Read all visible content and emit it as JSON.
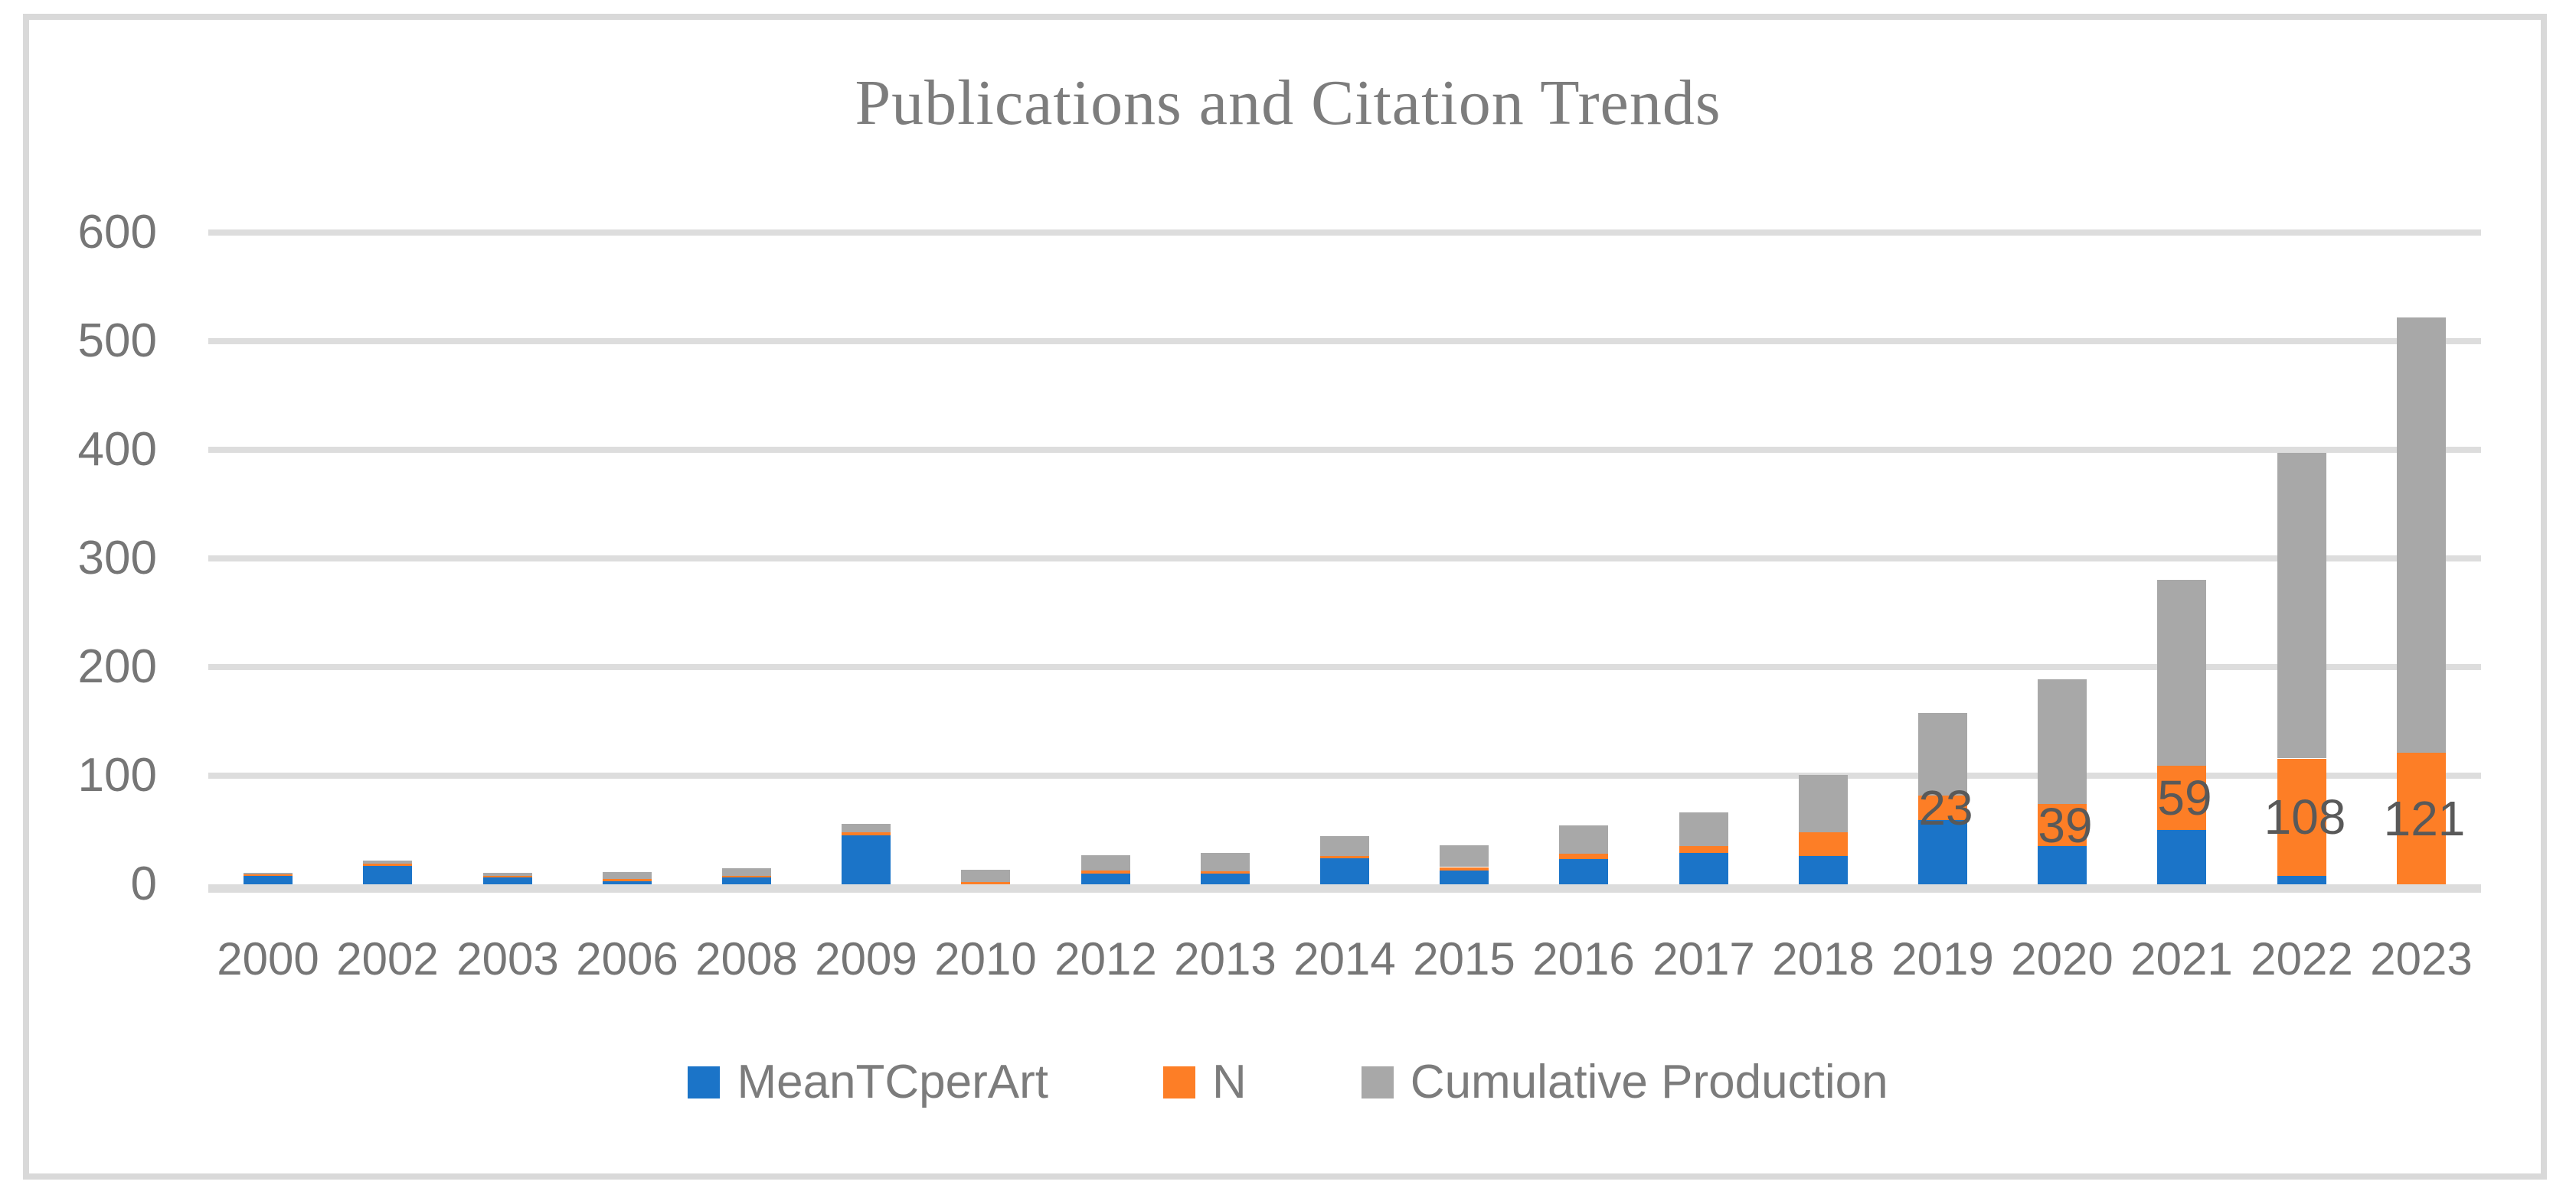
{
  "title": "Publications and Citation Trends",
  "colors": {
    "blue": "#1B74C8",
    "orange": "#FD7E26",
    "gray": "#A8A8A8",
    "gridline": "#DDDDDD",
    "axis_text": "#767676",
    "title_text": "#7D7D7D",
    "data_label_text": "#595959",
    "border": "#D9D9D9"
  },
  "legend": {
    "items": [
      {
        "label": "MeanTCperArt",
        "color": "#1B74C8"
      },
      {
        "label": "N",
        "color": "#FD7E26"
      },
      {
        "label": "Cumulative Production",
        "color": "#A8A8A8"
      }
    ]
  },
  "chart_data": {
    "type": "bar",
    "stacked": true,
    "title": "Publications and Citation Trends",
    "xlabel": "",
    "ylabel": "",
    "categories": [
      "2000",
      "2002",
      "2003",
      "2006",
      "2008",
      "2009",
      "2010",
      "2012",
      "2013",
      "2014",
      "2015",
      "2016",
      "2017",
      "2018",
      "2019",
      "2020",
      "2021",
      "2022",
      "2023"
    ],
    "series": [
      {
        "name": "MeanTCperArt",
        "color": "#1B74C8",
        "values": [
          8,
          17,
          6,
          3,
          6,
          45,
          0,
          10,
          10,
          24,
          13,
          23,
          29,
          26,
          59,
          35,
          50,
          8,
          0
        ]
      },
      {
        "name": "N",
        "color": "#FD7E26",
        "values": [
          1,
          2,
          2,
          2,
          2,
          3,
          2,
          3,
          2,
          2,
          3,
          5,
          6,
          22,
          23,
          39,
          59,
          108,
          121
        ]
      },
      {
        "name": "Cumulative Production",
        "color": "#A8A8A8",
        "values": [
          1,
          3,
          3,
          6,
          7,
          8,
          11,
          14,
          17,
          18,
          20,
          26,
          31,
          53,
          76,
          115,
          171,
          281,
          401
        ]
      }
    ],
    "data_labels": [
      {
        "category": "2019",
        "series": "N",
        "text": "23"
      },
      {
        "category": "2020",
        "series": "N",
        "text": "39"
      },
      {
        "category": "2021",
        "series": "N",
        "text": "59"
      },
      {
        "category": "2022",
        "series": "N",
        "text": "108"
      },
      {
        "category": "2023",
        "series": "N",
        "text": "121"
      }
    ],
    "y_ticks": [
      0,
      100,
      200,
      300,
      400,
      500,
      600
    ],
    "ylim": [
      0,
      600
    ],
    "grid": true,
    "legend_position": "bottom"
  }
}
